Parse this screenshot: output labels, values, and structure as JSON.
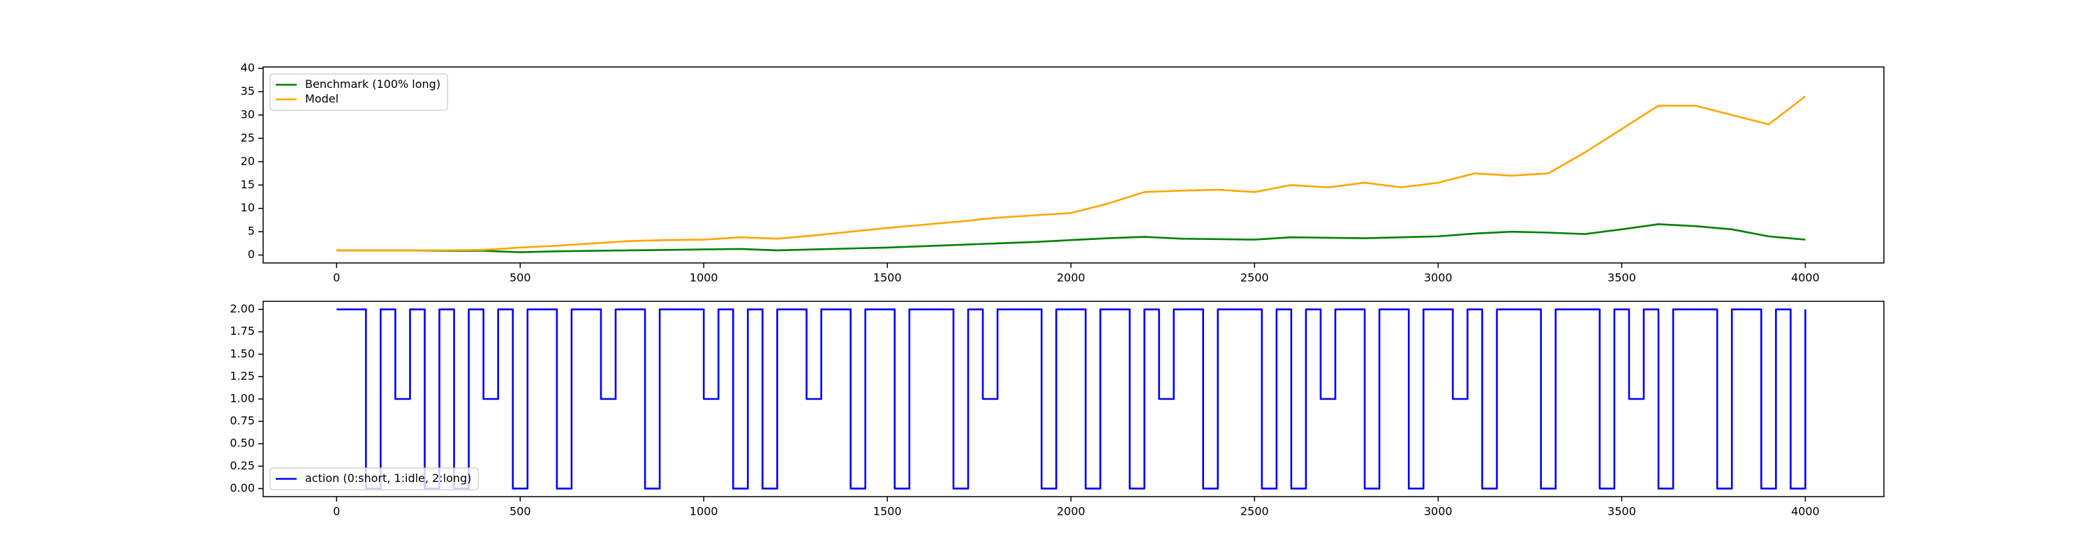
{
  "chart_data": [
    {
      "type": "line",
      "x": [
        0,
        100,
        200,
        300,
        400,
        500,
        600,
        700,
        800,
        900,
        1000,
        1100,
        1200,
        1300,
        1400,
        1500,
        1600,
        1700,
        1800,
        1900,
        2000,
        2100,
        2200,
        2300,
        2400,
        2500,
        2600,
        2700,
        2800,
        2900,
        3000,
        3100,
        3200,
        3300,
        3400,
        3500,
        3600,
        3700,
        3800,
        3900,
        4000
      ],
      "series": [
        {
          "name": "Benchmark (100% long)",
          "color": "#008000",
          "values": [
            1.0,
            1.0,
            1.0,
            0.9,
            0.9,
            0.6,
            0.8,
            0.9,
            1.0,
            1.1,
            1.2,
            1.3,
            1.0,
            1.2,
            1.4,
            1.6,
            1.9,
            2.2,
            2.5,
            2.8,
            3.2,
            3.6,
            3.9,
            3.5,
            3.4,
            3.3,
            3.8,
            3.7,
            3.6,
            3.8,
            4.0,
            4.6,
            5.0,
            4.8,
            4.5,
            5.5,
            6.6,
            6.2,
            5.5,
            4.0,
            3.3
          ]
        },
        {
          "name": "Model",
          "color": "#ffa500",
          "values": [
            1.0,
            1.0,
            1.0,
            1.0,
            1.1,
            1.6,
            2.0,
            2.5,
            3.0,
            3.2,
            3.3,
            3.8,
            3.5,
            4.2,
            5.0,
            5.8,
            6.5,
            7.2,
            8.0,
            8.5,
            9.0,
            11.0,
            13.5,
            13.8,
            14.0,
            13.5,
            15.0,
            14.5,
            15.5,
            14.5,
            15.5,
            17.5,
            17.0,
            17.5,
            22.0,
            27.0,
            32.0,
            32.0,
            30.0,
            28.0,
            34.0
          ]
        }
      ],
      "xlim": [
        -200,
        4214
      ],
      "xticks": [
        0,
        500,
        1000,
        1500,
        2000,
        2500,
        3000,
        3500,
        4000
      ],
      "ylim": [
        -1.7,
        40.3
      ],
      "yticks": [
        0,
        5,
        10,
        15,
        20,
        25,
        30,
        35,
        40
      ],
      "legend": "upper left"
    },
    {
      "type": "line",
      "step": true,
      "x": [
        0,
        40,
        80,
        120,
        160,
        200,
        240,
        280,
        320,
        360,
        400,
        440,
        480,
        520,
        560,
        600,
        640,
        680,
        720,
        760,
        800,
        840,
        880,
        920,
        960,
        1000,
        1040,
        1080,
        1120,
        1160,
        1200,
        1240,
        1280,
        1320,
        1360,
        1400,
        1440,
        1480,
        1520,
        1560,
        1600,
        1640,
        1680,
        1720,
        1760,
        1800,
        1840,
        1880,
        1920,
        1960,
        2000,
        2040,
        2080,
        2120,
        2160,
        2200,
        2240,
        2280,
        2320,
        2360,
        2400,
        2440,
        2480,
        2520,
        2560,
        2600,
        2640,
        2680,
        2720,
        2760,
        2800,
        2840,
        2880,
        2920,
        2960,
        3000,
        3040,
        3080,
        3120,
        3160,
        3200,
        3240,
        3280,
        3320,
        3360,
        3400,
        3440,
        3480,
        3520,
        3560,
        3600,
        3640,
        3680,
        3720,
        3760,
        3800,
        3840,
        3880,
        3920,
        3960,
        4000
      ],
      "series": [
        {
          "name": "action (0:short, 1:idle, 2:long)",
          "color": "#0000ff",
          "values": [
            2,
            2,
            0,
            2,
            1,
            2,
            0,
            2,
            0,
            2,
            1,
            2,
            0,
            2,
            2,
            0,
            2,
            2,
            1,
            2,
            2,
            0,
            2,
            2,
            2,
            1,
            2,
            0,
            2,
            0,
            2,
            2,
            1,
            2,
            2,
            0,
            2,
            2,
            0,
            2,
            2,
            2,
            0,
            2,
            1,
            2,
            2,
            2,
            0,
            2,
            2,
            0,
            2,
            2,
            0,
            2,
            1,
            2,
            2,
            0,
            2,
            2,
            2,
            0,
            2,
            0,
            2,
            1,
            2,
            2,
            0,
            2,
            2,
            0,
            2,
            2,
            1,
            2,
            0,
            2,
            2,
            2,
            0,
            2,
            2,
            2,
            0,
            2,
            1,
            2,
            0,
            2,
            2,
            2,
            0,
            2,
            2,
            0,
            2,
            0,
            2
          ]
        }
      ],
      "xlim": [
        -200,
        4214
      ],
      "xticks": [
        0,
        500,
        1000,
        1500,
        2000,
        2500,
        3000,
        3500,
        4000
      ],
      "ylim": [
        -0.09,
        2.09
      ],
      "yticks": [
        {
          "value": 0,
          "label": "0.00"
        },
        {
          "value": 0.25,
          "label": "0.25"
        },
        {
          "value": 0.5,
          "label": "0.50"
        },
        {
          "value": 0.75,
          "label": "0.75"
        },
        {
          "value": 1,
          "label": "1.00"
        },
        {
          "value": 1.25,
          "label": "1.25"
        },
        {
          "value": 1.5,
          "label": "1.50"
        },
        {
          "value": 1.75,
          "label": "1.75"
        },
        {
          "value": 2,
          "label": "2.00"
        }
      ],
      "legend": "lower left"
    }
  ]
}
